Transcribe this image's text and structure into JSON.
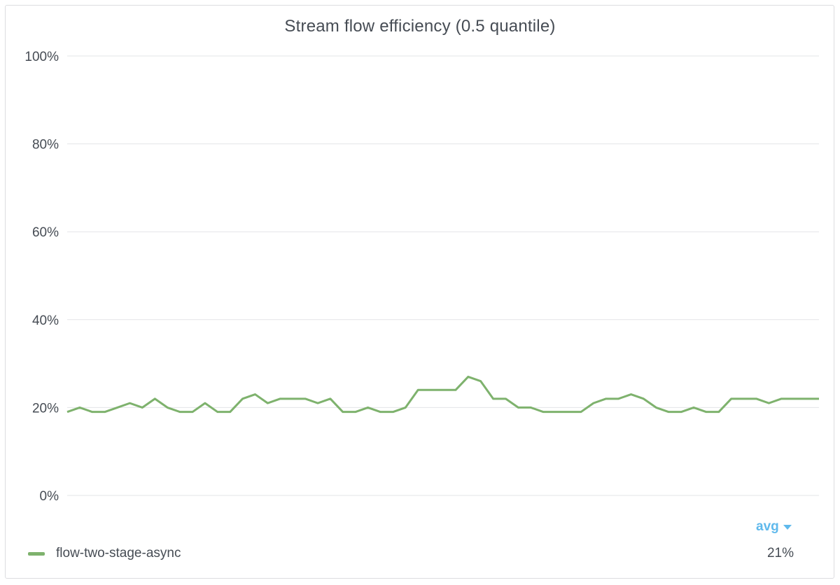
{
  "colors": {
    "series": "#7eb26d",
    "accent": "#5fb9ec"
  },
  "chart_data": {
    "type": "line",
    "title": "Stream flow efficiency (0.5 quantile)",
    "xlabel": "",
    "ylabel": "",
    "ylim": [
      0,
      100
    ],
    "y_ticks": [
      {
        "value": 100,
        "label": "100%"
      },
      {
        "value": 80,
        "label": "80%"
      },
      {
        "value": 60,
        "label": "60%"
      },
      {
        "value": 40,
        "label": "40%"
      },
      {
        "value": 20,
        "label": "20%"
      },
      {
        "value": 0,
        "label": "0%"
      }
    ],
    "grid": true,
    "series": [
      {
        "name": "flow-two-stage-async",
        "values": [
          19,
          20,
          19,
          19,
          20,
          21,
          20,
          22,
          20,
          19,
          19,
          21,
          19,
          19,
          22,
          23,
          21,
          22,
          22,
          22,
          21,
          22,
          19,
          19,
          20,
          19,
          19,
          20,
          24,
          24,
          24,
          24,
          27,
          26,
          22,
          22,
          20,
          20,
          19,
          19,
          19,
          19,
          21,
          22,
          22,
          23,
          22,
          20,
          19,
          19,
          20,
          19,
          19,
          22,
          22,
          22,
          21,
          22,
          22,
          22,
          22
        ]
      }
    ]
  },
  "legend": {
    "column_header": "avg",
    "items": [
      {
        "name": "flow-two-stage-async",
        "avg": "21%"
      }
    ]
  }
}
